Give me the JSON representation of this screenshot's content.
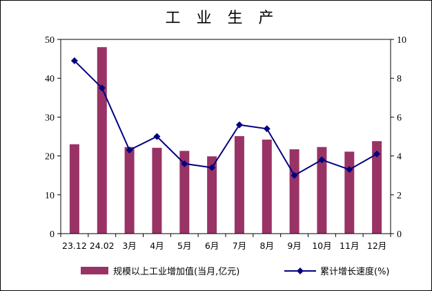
{
  "chart_data": {
    "type": "bar+line",
    "title": "工 业 生 产",
    "categories": [
      "23.12",
      "24.02",
      "3月",
      "4月",
      "5月",
      "6月",
      "7月",
      "8月",
      "9月",
      "10月",
      "11月",
      "12月"
    ],
    "series": [
      {
        "name": "规模以上工业增加值(当月,亿元)",
        "type": "bar",
        "axis": "left",
        "color": "#993366",
        "values": [
          23.0,
          48.0,
          22.3,
          22.1,
          21.3,
          19.9,
          25.1,
          24.2,
          21.7,
          22.3,
          21.1,
          23.8
        ]
      },
      {
        "name": "累计增长速度(%)",
        "type": "line",
        "axis": "right",
        "color": "#000080",
        "values": [
          8.9,
          7.5,
          4.3,
          5.0,
          3.6,
          3.4,
          5.6,
          5.4,
          3.0,
          3.8,
          3.3,
          4.1
        ]
      }
    ],
    "y_left": {
      "min": 0,
      "max": 50,
      "ticks": [
        0,
        10,
        20,
        30,
        40,
        50
      ]
    },
    "y_right": {
      "min": 0,
      "max": 10,
      "ticks": [
        0,
        2,
        4,
        6,
        8,
        10
      ]
    },
    "grid": false,
    "legend_position": "bottom"
  }
}
